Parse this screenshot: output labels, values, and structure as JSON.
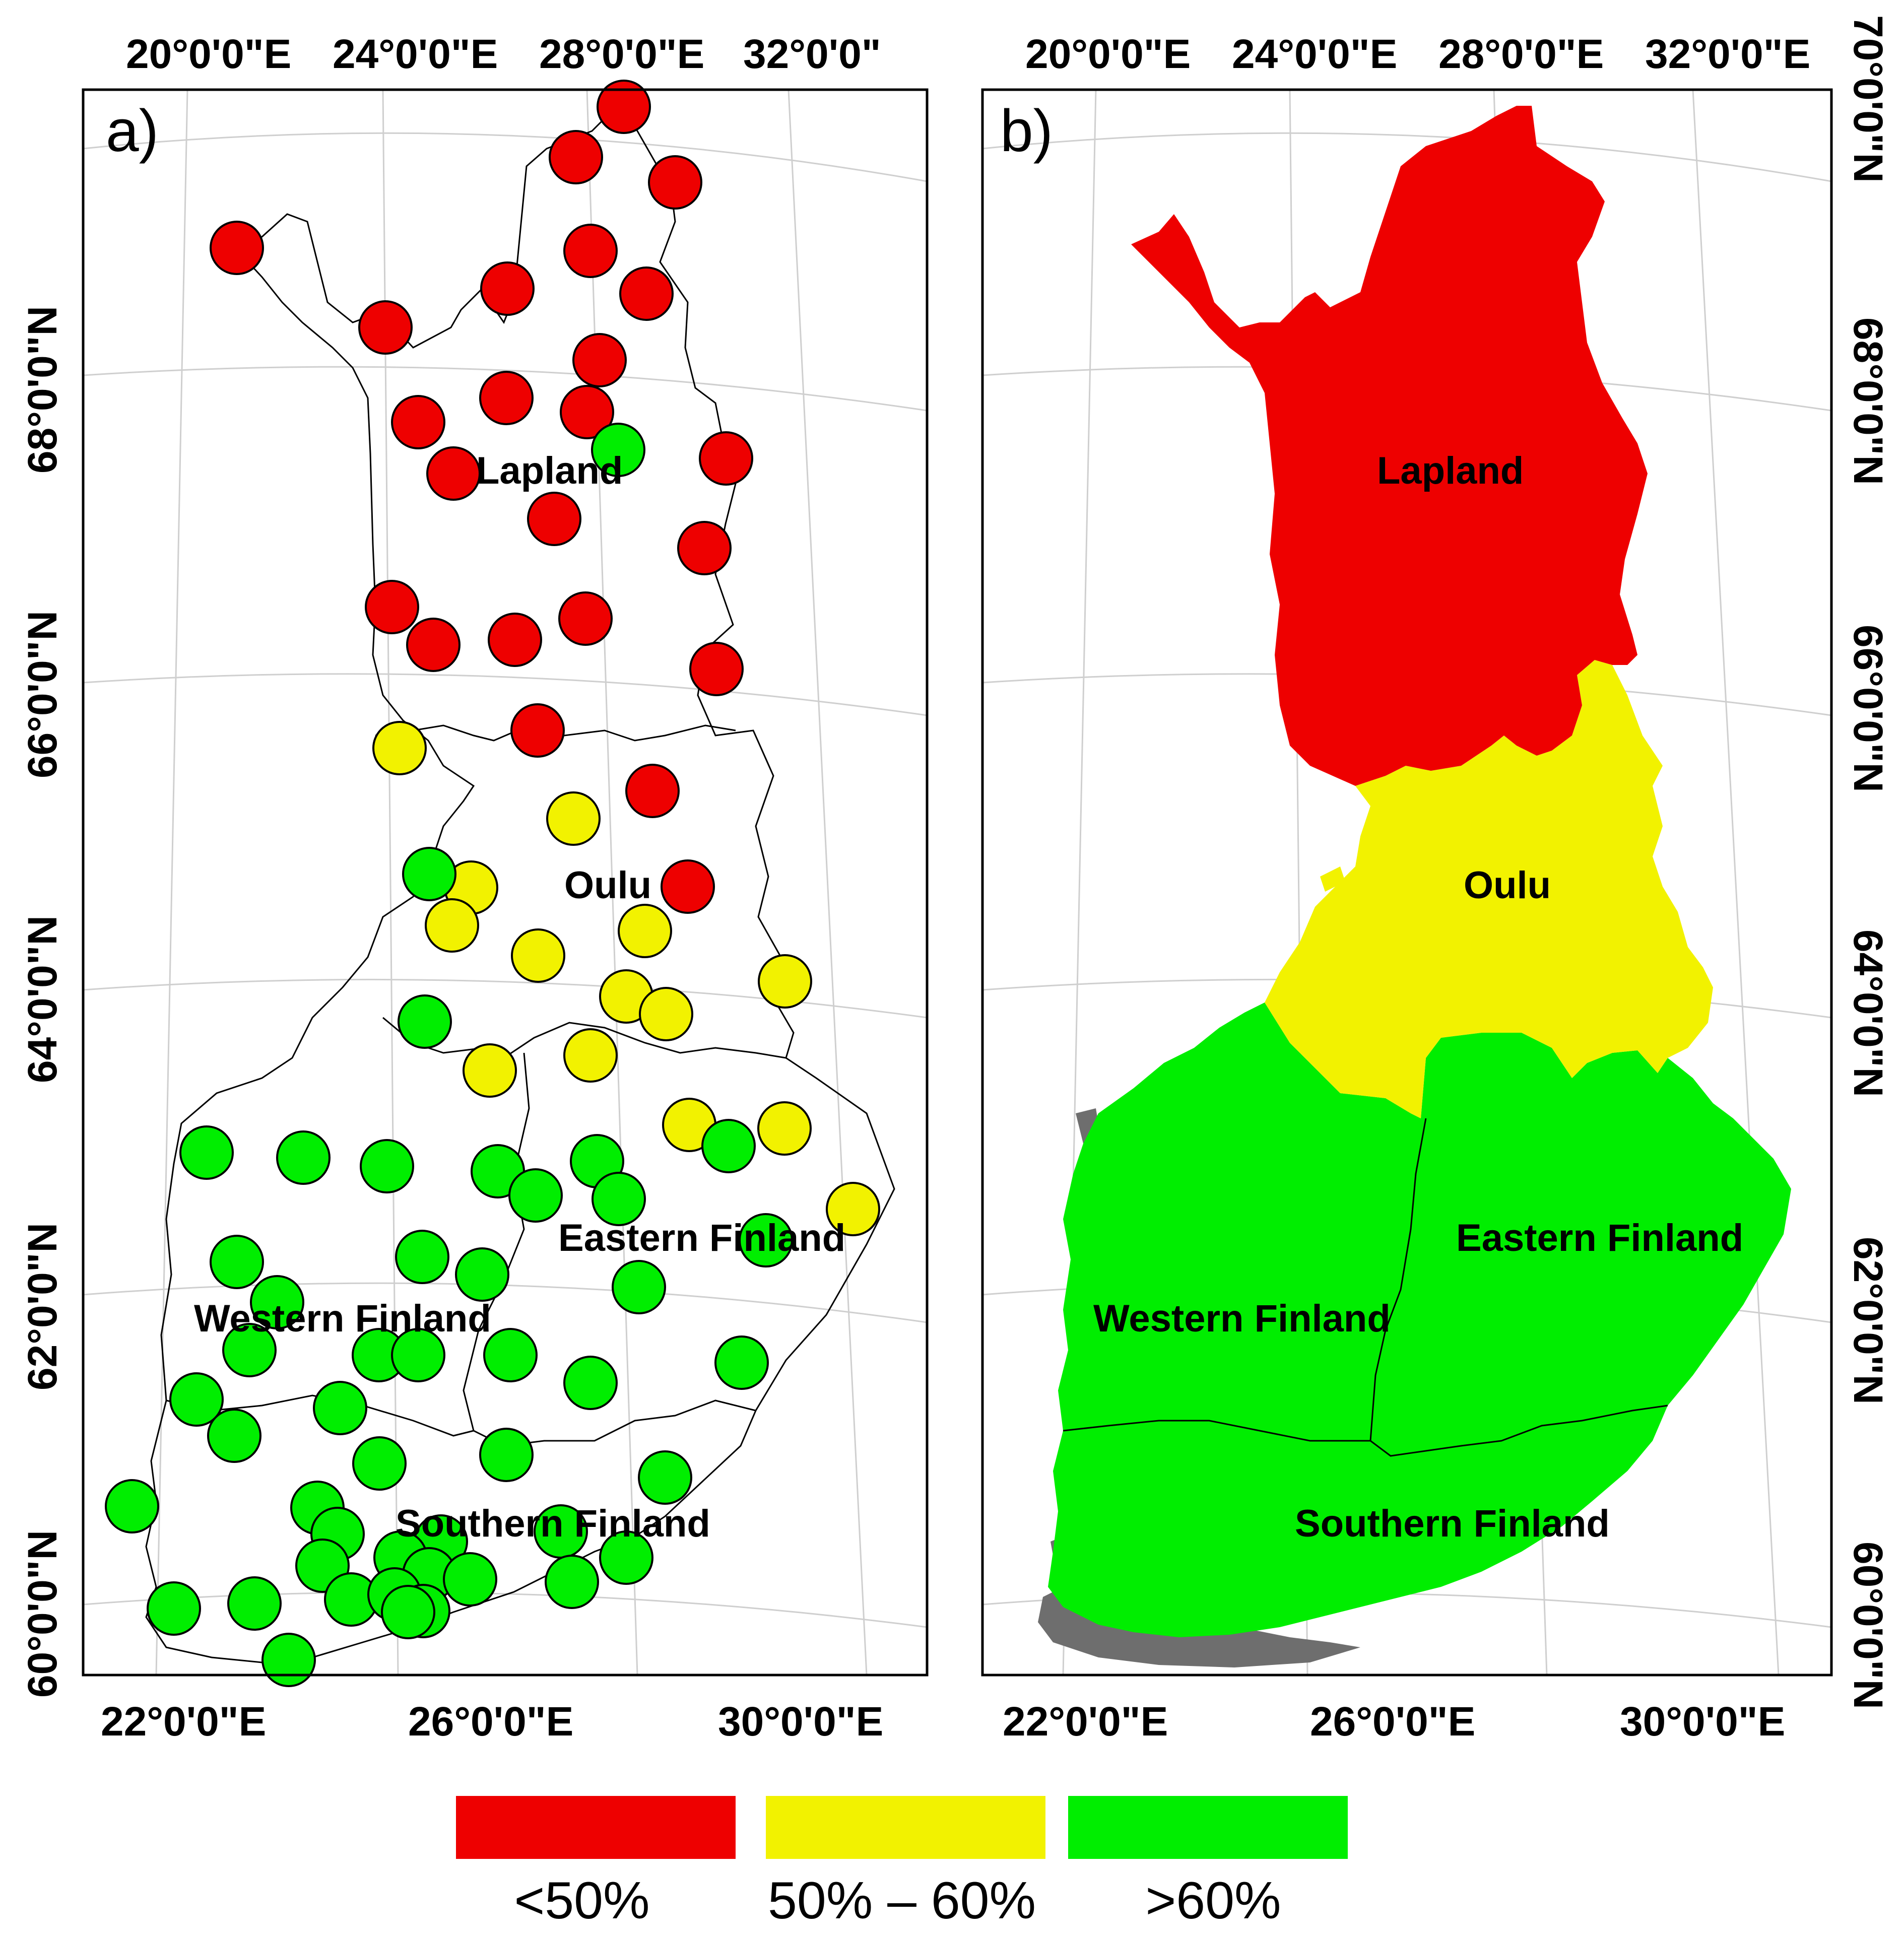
{
  "panels": [
    {
      "id": "a",
      "letter": "a)"
    },
    {
      "id": "b",
      "letter": "b)"
    }
  ],
  "top_lon_labels_a": [
    "20°0'0\"E",
    "24°0'0\"E",
    "28°0'0\"E",
    "32°0'0\""
  ],
  "bottom_lon_labels_a": [
    "22°0'0\"E",
    "26°0'0\"E",
    "30°0'0\"E"
  ],
  "top_lon_labels_b": [
    "20°0'0\"E",
    "24°0'0\"E",
    "28°0'0\"E",
    "32°0'0\"E"
  ],
  "bottom_lon_labels_b": [
    "22°0'0\"E",
    "26°0'0\"E",
    "30°0'0\"E"
  ],
  "left_lat_labels": [
    "68°0'0\"N",
    "66°0'0\"N",
    "64°0'0\"N",
    "62°0'0\"N",
    "60°0'0\"N"
  ],
  "right_lat_labels": [
    "70°0'0\"N",
    "68°0'0\"N",
    "66°0'0\"N",
    "64°0'0\"N",
    "62°0'0\"N",
    "60°0'0\"N"
  ],
  "regions": [
    {
      "name": "Lapland",
      "class": "<50%"
    },
    {
      "name": "Oulu",
      "class": "50% – 60%"
    },
    {
      "name": "Eastern Finland",
      "class": ">60%"
    },
    {
      "name": "Western Finland",
      "class": ">60%"
    },
    {
      "name": "Southern Finland",
      "class": ">60%"
    }
  ],
  "legend": [
    {
      "label": "<50%",
      "color": "#ee0000"
    },
    {
      "label": "50% – 60%",
      "color": "#f2f200"
    },
    {
      "label": ">60%",
      "color": "#00ee00"
    }
  ],
  "colors": {
    "red": "#ee0000",
    "yellow": "#f2f200",
    "green": "#00ee00",
    "islands": "#6e6e6e"
  }
}
